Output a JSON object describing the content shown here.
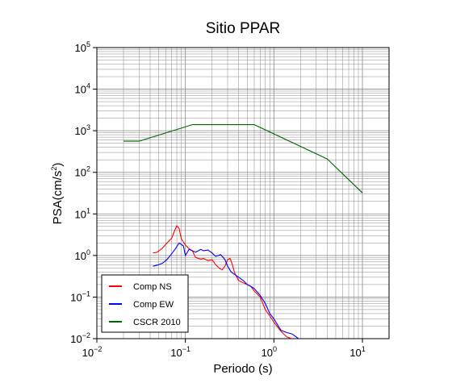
{
  "chart_data": {
    "type": "line",
    "title": "Sitio PPAR",
    "xlabel": "Periodo (s)",
    "ylabel_base": "PSA(cm/s",
    "ylabel_sup": "2",
    "ylabel_end": ")",
    "xscale": "log",
    "yscale": "log",
    "xlim": [
      0.01,
      20
    ],
    "ylim": [
      0.01,
      100000
    ],
    "grid": true,
    "legend_position": "bottom-left",
    "x_ticks": [
      {
        "base": "10",
        "exp": "−2"
      },
      {
        "base": "10",
        "exp": "−1"
      },
      {
        "base": "10",
        "exp": "0"
      },
      {
        "base": "10",
        "exp": "1"
      }
    ],
    "y_ticks": [
      {
        "base": "10",
        "exp": "−2"
      },
      {
        "base": "10",
        "exp": "−1"
      },
      {
        "base": "10",
        "exp": "0"
      },
      {
        "base": "10",
        "exp": "1"
      },
      {
        "base": "10",
        "exp": "2"
      },
      {
        "base": "10",
        "exp": "3"
      },
      {
        "base": "10",
        "exp": "4"
      },
      {
        "base": "10",
        "exp": "5"
      }
    ],
    "series": [
      {
        "name": "Comp NS",
        "color": "#ff0000",
        "x": [
          0.043,
          0.048,
          0.055,
          0.062,
          0.07,
          0.075,
          0.08,
          0.085,
          0.09,
          0.1,
          0.11,
          0.12,
          0.13,
          0.14,
          0.15,
          0.16,
          0.18,
          0.2,
          0.22,
          0.24,
          0.26,
          0.28,
          0.3,
          0.32,
          0.34,
          0.36,
          0.4,
          0.45,
          0.5,
          0.55,
          0.6,
          0.7,
          0.8,
          0.9,
          1.0,
          1.2,
          1.4,
          1.6
        ],
        "y": [
          1.15,
          1.2,
          1.5,
          2.0,
          2.6,
          3.8,
          5.2,
          4.5,
          2.5,
          1.8,
          1.45,
          1.3,
          0.9,
          0.85,
          0.82,
          0.85,
          0.75,
          0.8,
          0.6,
          0.5,
          0.45,
          0.55,
          0.8,
          0.85,
          0.6,
          0.38,
          0.25,
          0.22,
          0.2,
          0.18,
          0.14,
          0.1,
          0.05,
          0.035,
          0.025,
          0.015,
          0.011,
          0.01
        ]
      },
      {
        "name": "Comp EW",
        "color": "#0000ff",
        "x": [
          0.043,
          0.05,
          0.055,
          0.062,
          0.07,
          0.078,
          0.085,
          0.095,
          0.1,
          0.11,
          0.12,
          0.13,
          0.14,
          0.15,
          0.16,
          0.18,
          0.2,
          0.22,
          0.25,
          0.28,
          0.3,
          0.33,
          0.36,
          0.4,
          0.45,
          0.5,
          0.55,
          0.6,
          0.7,
          0.8,
          0.9,
          1.0,
          1.2,
          1.4,
          1.6,
          1.9
        ],
        "y": [
          0.55,
          0.6,
          0.65,
          0.8,
          1.1,
          1.5,
          2.0,
          1.7,
          1.0,
          1.4,
          1.3,
          1.2,
          1.3,
          1.4,
          1.3,
          1.35,
          1.15,
          0.95,
          1.05,
          0.8,
          0.55,
          0.4,
          0.35,
          0.3,
          0.25,
          0.2,
          0.18,
          0.16,
          0.11,
          0.07,
          0.04,
          0.03,
          0.016,
          0.014,
          0.013,
          0.01
        ]
      },
      {
        "name": "CSCR 2010",
        "color": "#006400",
        "x": [
          0.02,
          0.03,
          0.12,
          0.6,
          4.0,
          10.0
        ],
        "y": [
          560,
          560,
          1400,
          1400,
          210,
          32
        ]
      }
    ]
  }
}
